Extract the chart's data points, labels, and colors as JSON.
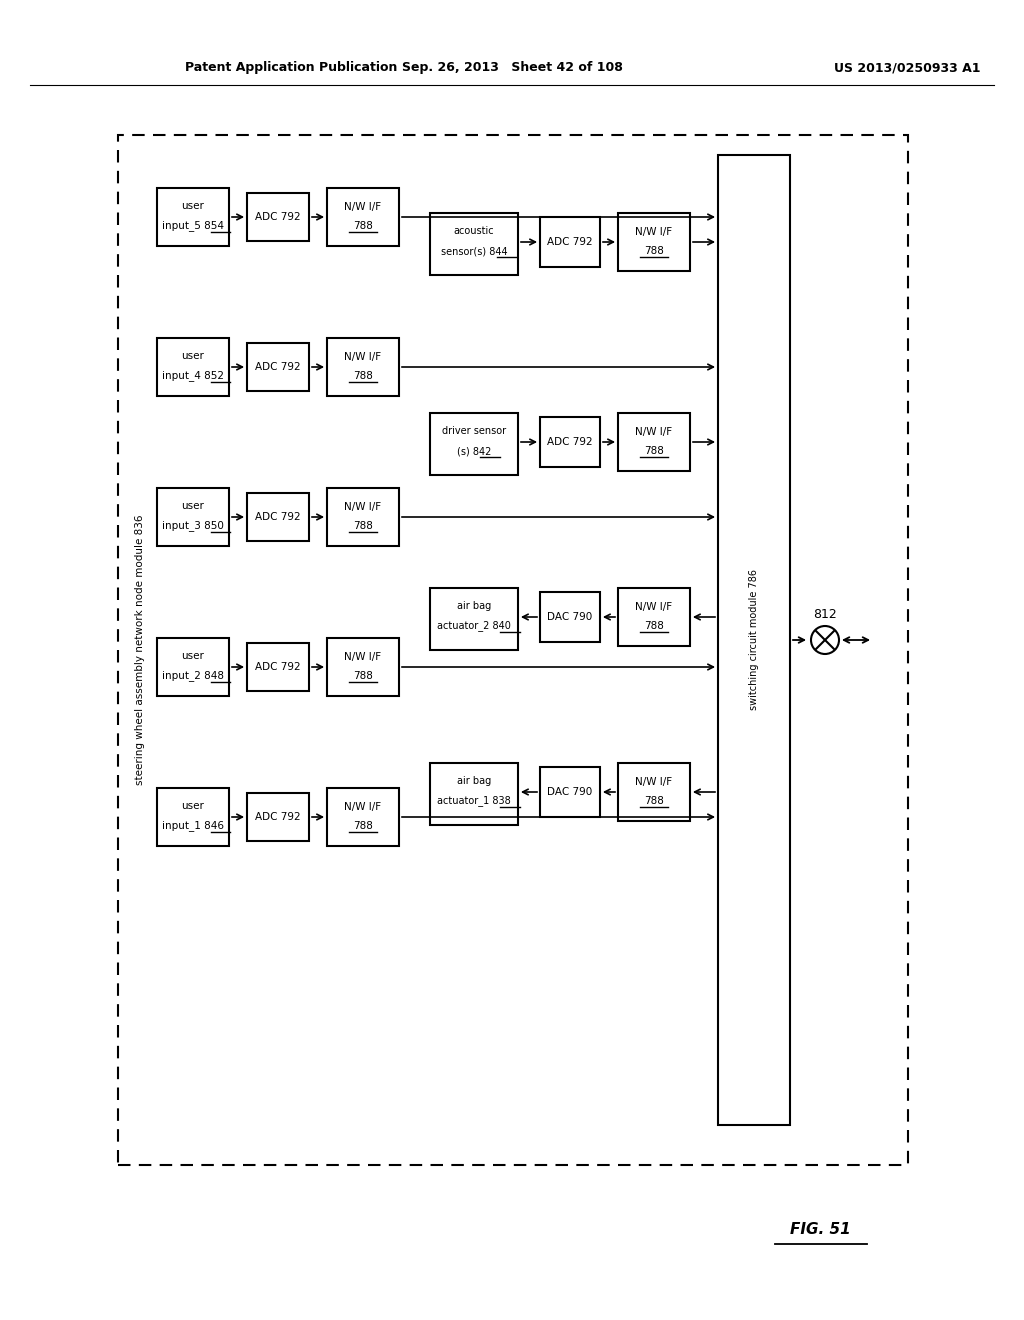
{
  "header_left": "Patent Application Publication",
  "header_mid": "Sep. 26, 2013 Sheet 42 of 108",
  "header_right": "US 2013/0250933 A1",
  "fig_label": "FIG. 51",
  "outer_label": "steering wheel assembly network node module 836",
  "switching_label": "switching circuit module 786",
  "switch_num": "812",
  "user_rows": [
    {
      "line1": "user",
      "line2": "input_1",
      "num": "846"
    },
    {
      "line1": "user",
      "line2": "input_2",
      "num": "848"
    },
    {
      "line1": "user",
      "line2": "input_3",
      "num": "850"
    },
    {
      "line1": "user",
      "line2": "input_4",
      "num": "852"
    },
    {
      "line1": "user",
      "line2": "input_5",
      "num": "854"
    }
  ],
  "right_devices": [
    {
      "line1": "air bag",
      "line2": "actuator_1",
      "num": "838",
      "conv": "DAC",
      "conv_num": "790",
      "dir": "out"
    },
    {
      "line1": "air bag",
      "line2": "actuator_2",
      "num": "840",
      "conv": "DAC",
      "conv_num": "790",
      "dir": "out"
    },
    {
      "line1": "driver sensor",
      "line2": "(s)",
      "num": "842",
      "conv": "ADC",
      "conv_num": "792",
      "dir": "in"
    },
    {
      "line1": "acoustic",
      "line2": "sensor(s)",
      "num": "844",
      "conv": "ADC",
      "conv_num": "792",
      "dir": "in"
    }
  ]
}
